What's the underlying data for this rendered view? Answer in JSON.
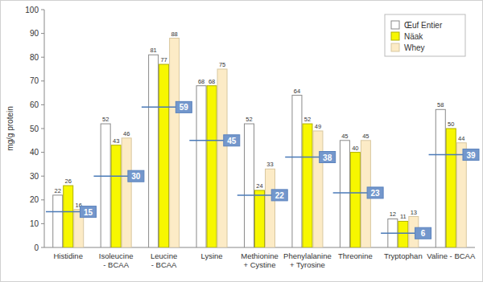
{
  "chart_data": {
    "type": "bar",
    "y_label": "mg/g protein",
    "categories": [
      "Histidine",
      "Isoleucine - BCAA",
      "Leucine - BCAA",
      "Lysine",
      "Methionine + Cystine",
      "Phenylalanine + Tyrosine",
      "Threonine",
      "Tryptophan",
      "Valine - BCAA"
    ],
    "series": [
      {
        "name": "Œuf Entier",
        "color": "#ffffff",
        "values": [
          22,
          52,
          81,
          68,
          52,
          64,
          45,
          12,
          58
        ]
      },
      {
        "name": "Näak",
        "color": "#f7f700",
        "values": [
          26,
          43,
          77,
          68,
          24,
          52,
          40,
          11,
          50
        ]
      },
      {
        "name": "Whey",
        "color": "#fcebc6",
        "values": [
          16,
          46,
          88,
          75,
          33,
          49,
          45,
          13,
          44
        ]
      }
    ],
    "reference_values": [
      15,
      30,
      59,
      45,
      22,
      38,
      23,
      6,
      39
    ],
    "ylim": [
      0,
      100
    ],
    "yticks": [
      0,
      10,
      20,
      30,
      40,
      50,
      60,
      70,
      80,
      90,
      100
    ],
    "grid": false,
    "legend": "top-right",
    "data_labels": true
  }
}
